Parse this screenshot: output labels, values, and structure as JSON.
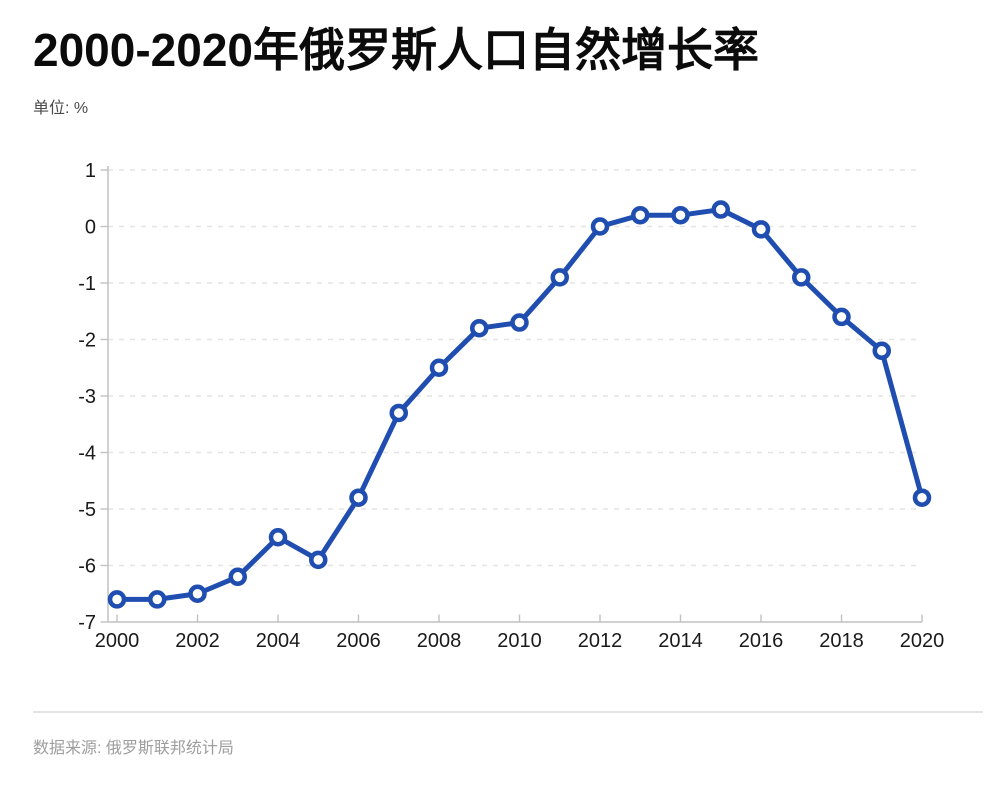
{
  "header": {
    "title": "2000-2020年俄罗斯人口自然增长率",
    "unit": "单位: %"
  },
  "footer": {
    "source": "数据来源: 俄罗斯联邦统计局"
  },
  "chart_data": {
    "type": "line",
    "title": "2000-2020年俄罗斯人口自然增长率",
    "unit_label": "单位: %",
    "x": [
      2000,
      2001,
      2002,
      2003,
      2004,
      2005,
      2006,
      2007,
      2008,
      2009,
      2010,
      2011,
      2012,
      2013,
      2014,
      2015,
      2016,
      2017,
      2018,
      2019,
      2020
    ],
    "values": [
      -6.6,
      -6.6,
      -6.5,
      -6.2,
      -5.5,
      -5.9,
      -4.8,
      -3.3,
      -2.5,
      -1.8,
      -1.7,
      -0.9,
      0,
      0.2,
      0.2,
      0.3,
      -0.05,
      -0.9,
      -1.6,
      -2.2,
      -4.8
    ],
    "ylim": [
      -7,
      1
    ],
    "y_ticks": [
      1,
      0,
      -1,
      -2,
      -3,
      -4,
      -5,
      -6,
      -7
    ],
    "x_ticks": [
      2000,
      2002,
      2004,
      2006,
      2008,
      2010,
      2012,
      2014,
      2016,
      2018,
      2020
    ],
    "grid": "horizontal-dashed",
    "legend": "none",
    "marker_style": "open-circle",
    "colors": {
      "line": "#1f4eb0",
      "marker_fill": "#ffffff",
      "grid": "#e4e4e4",
      "axis": "#c2c2c2",
      "tick_text": "#1a1a1a"
    }
  }
}
